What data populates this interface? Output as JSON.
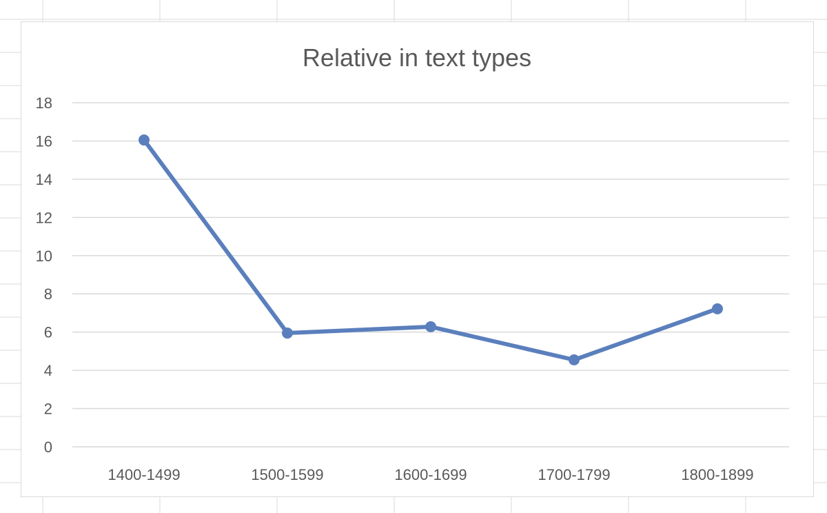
{
  "chart_data": {
    "type": "line",
    "title": "Relative in text types",
    "xlabel": "",
    "ylabel": "",
    "categories": [
      "1400-1499",
      "1500-1599",
      "1600-1699",
      "1700-1799",
      "1800-1899"
    ],
    "series": [
      {
        "values": [
          16.05,
          5.95,
          6.28,
          4.55,
          7.22
        ]
      }
    ],
    "ylim": [
      0,
      18
    ],
    "yticks": [
      0,
      2,
      4,
      6,
      8,
      10,
      12,
      14,
      16,
      18
    ],
    "grid": true,
    "legend": "none",
    "colors": {
      "series": "#5b7fbd",
      "grid": "#d9d9d9",
      "text": "#595959"
    }
  }
}
